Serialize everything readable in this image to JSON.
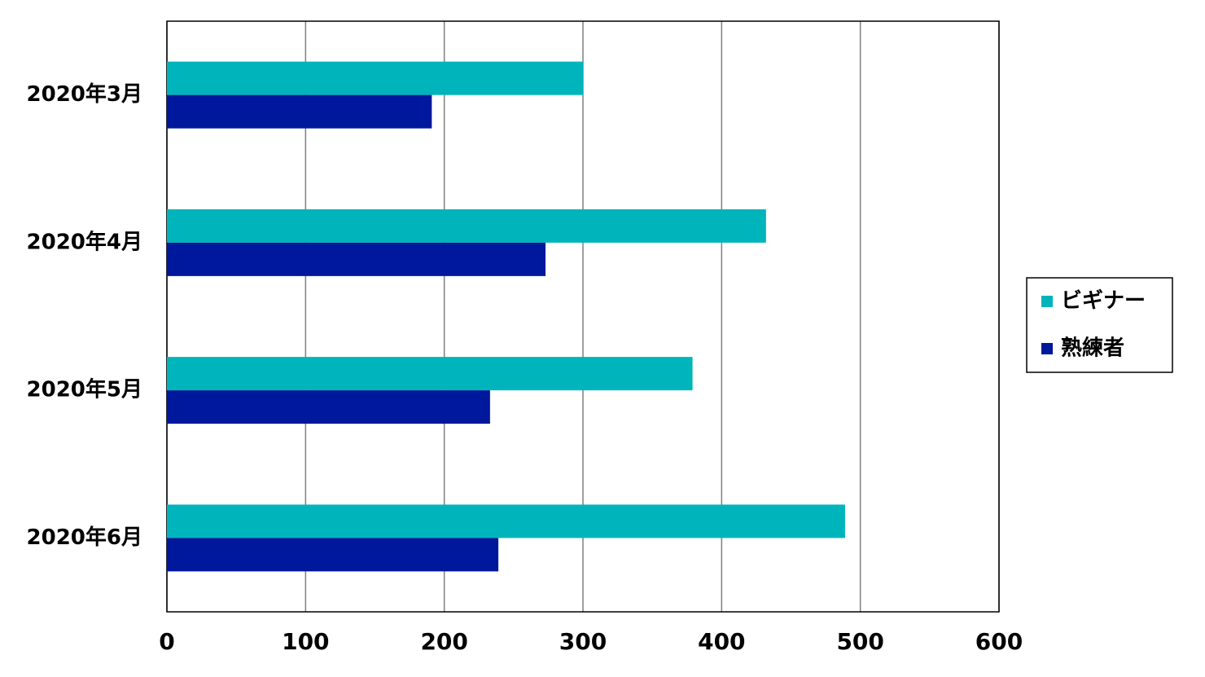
{
  "chart_data": {
    "type": "barh",
    "categories": [
      "2020年3月",
      "2020年4月",
      "2020年5月",
      "2020年6月"
    ],
    "series": [
      {
        "name": "ビギナー",
        "color": "#00b4bc",
        "values": [
          300,
          432,
          379,
          489
        ]
      },
      {
        "name": "熟練者",
        "color": "#00189c",
        "values": [
          191,
          273,
          233,
          239
        ]
      }
    ],
    "xlim": [
      0,
      600
    ],
    "xticks": [
      0,
      100,
      200,
      300,
      400,
      500,
      600
    ],
    "grid": true,
    "legend": "right"
  }
}
